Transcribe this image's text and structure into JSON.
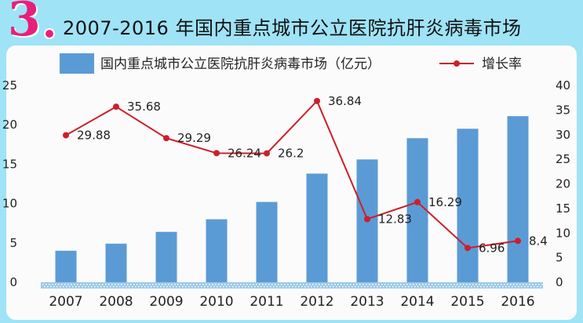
{
  "header": {
    "number": "3",
    "title": "2007-2016 年国内重点城市公立医院抗肝炎病毒市场"
  },
  "colors": {
    "background": "#9fe3f7",
    "accent": "#e8207a",
    "bar": "#5b9bd5",
    "line": "#cc1f2b"
  },
  "chart_data": {
    "type": "bar",
    "categories": [
      "2007",
      "2008",
      "2009",
      "2010",
      "2011",
      "2012",
      "2013",
      "2014",
      "2015",
      "2016"
    ],
    "series": [
      {
        "name": "国内重点城市公立医院抗肝炎病毒市场（亿元）",
        "type": "bar",
        "axis": "left",
        "values": [
          4.0,
          4.9,
          6.4,
          8.0,
          10.2,
          13.8,
          15.6,
          18.3,
          19.5,
          21.1
        ]
      },
      {
        "name": "增长率",
        "type": "line",
        "axis": "right",
        "values": [
          29.88,
          35.68,
          29.29,
          26.24,
          26.2,
          36.84,
          12.83,
          16.29,
          6.96,
          8.4
        ],
        "labels": [
          "29.88",
          "35.68",
          "29.29",
          "26.24",
          "26.2",
          "36.84",
          "12.83",
          "16.29",
          "6.96",
          "8.4"
        ]
      }
    ],
    "y_left": {
      "min": 0,
      "max": 25,
      "ticks": [
        0,
        5,
        10,
        15,
        20,
        25
      ]
    },
    "y_right": {
      "min": 0,
      "max": 40,
      "ticks": [
        0,
        5,
        10,
        15,
        20,
        25,
        30,
        35,
        40
      ]
    },
    "legend": "top-center",
    "grid": false
  }
}
